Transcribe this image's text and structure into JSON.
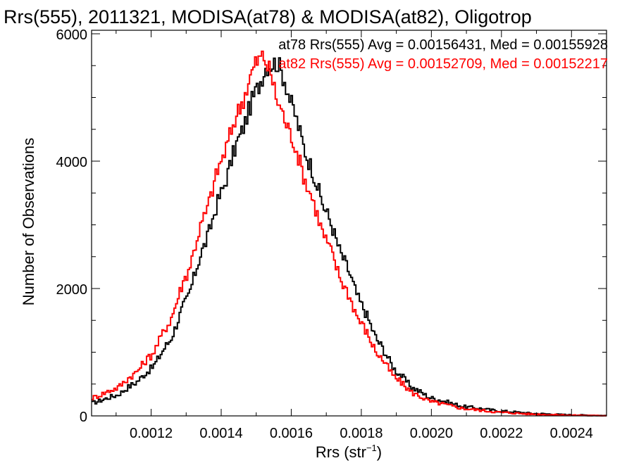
{
  "chart_data": {
    "type": "line",
    "title": "Rrs(555), 2011321, MODISA(at78) & MODISA(at82), Oligotrop",
    "xlabel_main": "Rrs (str",
    "xlabel_sup": "−1",
    "xlabel_close": ")",
    "ylabel": "Number of Observations",
    "xlim": [
      0.00103,
      0.0025
    ],
    "ylim": [
      0,
      6000
    ],
    "x_ticks": [
      0.0012,
      0.0014,
      0.0016,
      0.0018,
      0.002,
      0.0022,
      0.0024
    ],
    "x_tick_labels": [
      "0.0012",
      "0.0014",
      "0.0016",
      "0.0018",
      "0.0020",
      "0.0022",
      "0.0024"
    ],
    "y_ticks": [
      0,
      2000,
      4000,
      6000
    ],
    "y_tick_labels": [
      "0",
      "2000",
      "4000",
      "6000"
    ],
    "grid": false,
    "legend_position": "top-right",
    "annotations": [
      "at78 Rrs(555) Avg = 0.00156431, Med = 0.00155928",
      "at82 Rrs(555) Avg = 0.00152709, Med = 0.00152217"
    ],
    "series": [
      {
        "name": "at78",
        "color": "#000000",
        "style": "histogram-step",
        "points": [
          [
            0.00103,
            200
          ],
          [
            0.0011,
            320
          ],
          [
            0.00115,
            500
          ],
          [
            0.0012,
            740
          ],
          [
            0.00125,
            1150
          ],
          [
            0.0013,
            1800
          ],
          [
            0.00135,
            2650
          ],
          [
            0.0014,
            3500
          ],
          [
            0.00145,
            4350
          ],
          [
            0.0015,
            5100
          ],
          [
            0.00153,
            5500
          ],
          [
            0.00156,
            5550
          ],
          [
            0.00158,
            5300
          ],
          [
            0.0016,
            4900
          ],
          [
            0.00165,
            4000
          ],
          [
            0.0017,
            3200
          ],
          [
            0.00175,
            2450
          ],
          [
            0.0018,
            1750
          ],
          [
            0.00185,
            1150
          ],
          [
            0.0019,
            700
          ],
          [
            0.00195,
            430
          ],
          [
            0.002,
            280
          ],
          [
            0.0021,
            140
          ],
          [
            0.0022,
            75
          ],
          [
            0.0023,
            35
          ],
          [
            0.0024,
            15
          ],
          [
            0.0025,
            5
          ]
        ]
      },
      {
        "name": "at82",
        "color": "#ff0000",
        "style": "histogram-step",
        "points": [
          [
            0.00103,
            280
          ],
          [
            0.0011,
            430
          ],
          [
            0.00115,
            650
          ],
          [
            0.0012,
            950
          ],
          [
            0.00125,
            1450
          ],
          [
            0.0013,
            2200
          ],
          [
            0.00135,
            3100
          ],
          [
            0.0014,
            4000
          ],
          [
            0.00145,
            4800
          ],
          [
            0.0015,
            5550
          ],
          [
            0.00152,
            5650
          ],
          [
            0.00154,
            5400
          ],
          [
            0.00156,
            4950
          ],
          [
            0.0016,
            4400
          ],
          [
            0.00165,
            3550
          ],
          [
            0.0017,
            2750
          ],
          [
            0.00175,
            2050
          ],
          [
            0.0018,
            1450
          ],
          [
            0.00185,
            950
          ],
          [
            0.0019,
            580
          ],
          [
            0.00195,
            350
          ],
          [
            0.002,
            220
          ],
          [
            0.0021,
            110
          ],
          [
            0.0022,
            55
          ],
          [
            0.0023,
            25
          ],
          [
            0.0024,
            10
          ],
          [
            0.0025,
            3
          ]
        ]
      }
    ]
  }
}
